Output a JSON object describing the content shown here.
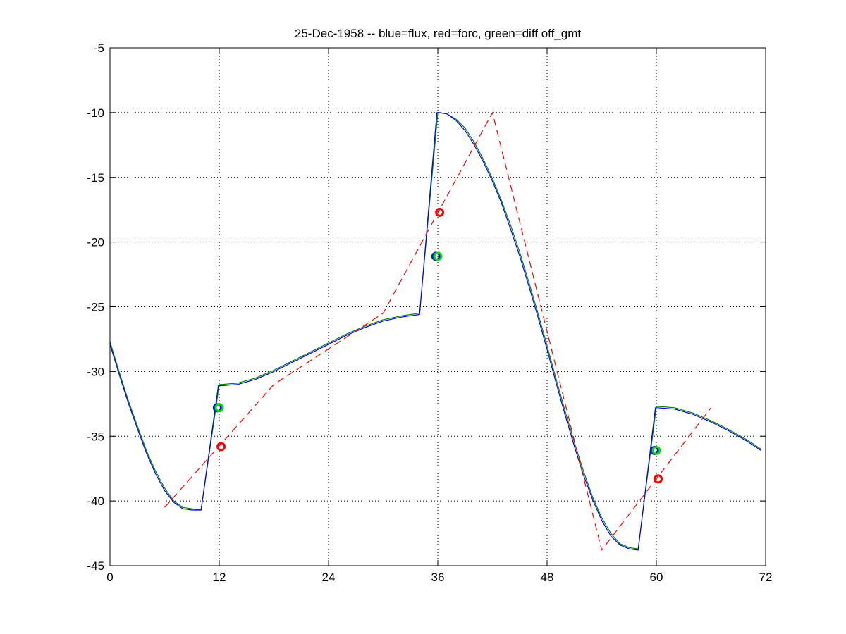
{
  "chart_data": {
    "type": "line",
    "title": "25-Dec-1958 -- blue=flux, red=forc, green=diff off_gmt",
    "xlabel": "",
    "ylabel": "",
    "xlim": [
      0,
      72
    ],
    "ylim": [
      -45,
      -5
    ],
    "xticks": [
      0,
      12,
      24,
      36,
      48,
      60,
      72
    ],
    "yticks": [
      -5,
      -10,
      -15,
      -20,
      -25,
      -30,
      -35,
      -40,
      -45
    ],
    "grid": true,
    "series": [
      {
        "color": "#0000ff",
        "style": "solid",
        "x": [
          0,
          1,
          2,
          3,
          4,
          5,
          6,
          7,
          8,
          9,
          10,
          11.9,
          12.1,
          14,
          16,
          18,
          20,
          22,
          24,
          26,
          28,
          30,
          32,
          34,
          35.9,
          36.1,
          37,
          38,
          39,
          40,
          41,
          42,
          43,
          44,
          45,
          46,
          47,
          48,
          49,
          50,
          51,
          52,
          53,
          54,
          55,
          56,
          57,
          58,
          59.9,
          60.1,
          62,
          64,
          66,
          68,
          70,
          71.5
        ],
        "y": [
          -27.9,
          -30.2,
          -32.4,
          -34.4,
          -36.3,
          -37.9,
          -39.2,
          -40.1,
          -40.6,
          -40.7,
          -40.7,
          -31.1,
          -31.1,
          -31.0,
          -30.6,
          -30.0,
          -29.3,
          -28.6,
          -27.9,
          -27.2,
          -26.6,
          -26.1,
          -25.8,
          -25.6,
          -10.0,
          -10.0,
          -10.1,
          -10.6,
          -11.4,
          -12.5,
          -13.8,
          -15.3,
          -17.0,
          -19.0,
          -21.1,
          -23.4,
          -25.8,
          -28.3,
          -30.9,
          -33.4,
          -35.8,
          -38.0,
          -39.9,
          -41.5,
          -42.7,
          -43.4,
          -43.7,
          -43.8,
          -32.8,
          -32.8,
          -32.9,
          -33.3,
          -33.9,
          -34.6,
          -35.4,
          -36.1
        ]
      },
      {
        "color": "#008000",
        "style": "solid",
        "x": [
          0,
          1,
          2,
          3,
          4,
          5,
          6,
          7,
          8,
          9,
          10,
          12.0,
          12.2,
          14,
          16,
          18,
          20,
          22,
          24,
          26,
          28,
          30,
          32,
          34,
          36.0,
          36.2,
          37,
          38,
          39,
          40,
          41,
          42,
          43,
          44,
          45,
          46,
          47,
          48,
          49,
          50,
          51,
          52,
          53,
          54,
          55,
          56,
          57,
          58,
          60.0,
          60.2,
          62,
          64,
          66,
          68,
          70,
          71.5
        ],
        "y": [
          -27.7,
          -30.0,
          -32.2,
          -34.2,
          -36.1,
          -37.7,
          -39.0,
          -40.0,
          -40.5,
          -40.6,
          -40.7,
          -31.0,
          -31.0,
          -30.9,
          -30.5,
          -29.9,
          -29.2,
          -28.5,
          -27.8,
          -27.1,
          -26.5,
          -26.0,
          -25.7,
          -25.5,
          -10.0,
          -10.0,
          -10.1,
          -10.5,
          -11.2,
          -12.3,
          -13.6,
          -15.1,
          -16.8,
          -18.7,
          -20.8,
          -23.1,
          -25.5,
          -28.0,
          -30.6,
          -33.1,
          -35.5,
          -37.7,
          -39.7,
          -41.3,
          -42.5,
          -43.3,
          -43.6,
          -43.7,
          -32.7,
          -32.7,
          -32.8,
          -33.2,
          -33.8,
          -34.5,
          -35.3,
          -36.0
        ]
      },
      {
        "color": "#ff0000",
        "style": "dashed",
        "x": [
          6,
          18,
          30,
          42,
          54,
          66
        ],
        "y": [
          -40.5,
          -31.0,
          -25.5,
          -10.0,
          -43.8,
          -32.8
        ]
      }
    ],
    "markers": [
      {
        "color": "#0000ff",
        "points": [
          [
            11.8,
            -32.8
          ],
          [
            35.8,
            -21.1
          ],
          [
            59.8,
            -36.1
          ]
        ]
      },
      {
        "color": "#00dd00",
        "points": [
          [
            12.0,
            -32.8
          ],
          [
            36.0,
            -21.1
          ],
          [
            60.0,
            -36.1
          ]
        ]
      },
      {
        "color": "#ff0000",
        "points": [
          [
            12.2,
            -35.8
          ],
          [
            36.2,
            -17.7
          ],
          [
            60.2,
            -38.3
          ]
        ]
      }
    ]
  }
}
